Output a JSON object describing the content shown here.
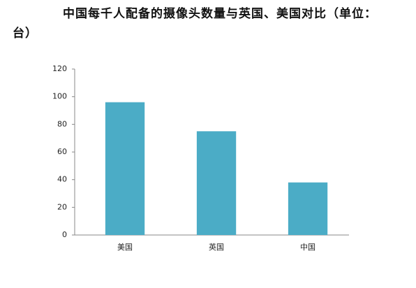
{
  "chart_data": {
    "type": "bar",
    "title": "中国每千人配备的摄像头数量与英国、美国对比（单位：台）",
    "categories": [
      "美国",
      "英国",
      "中国"
    ],
    "values": [
      96,
      75,
      38
    ],
    "color": "#4bacc6",
    "ylim": [
      0,
      120
    ],
    "yticks": [
      0,
      20,
      40,
      60,
      80,
      100,
      120
    ],
    "grid": false
  }
}
